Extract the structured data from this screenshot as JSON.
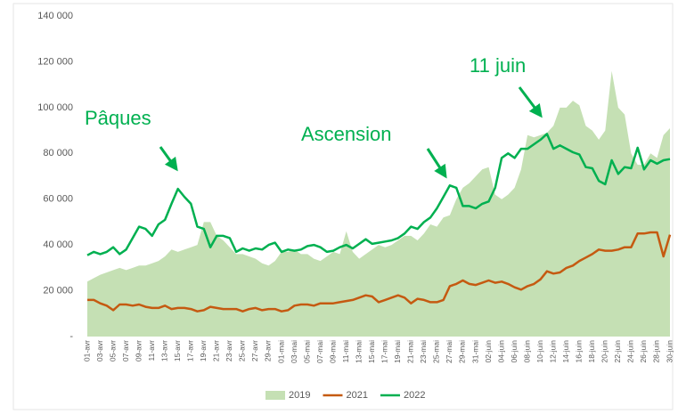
{
  "chart_data": {
    "type": "line",
    "categories": [
      "01-avr",
      null,
      "03-avr",
      null,
      "05-avr",
      null,
      "07-avr",
      null,
      "09-avr",
      null,
      "11-avr",
      null,
      "13-avr",
      null,
      "15-avr",
      null,
      "17-avr",
      null,
      "19-avr",
      null,
      "21-avr",
      null,
      "23-avr",
      null,
      "25-avr",
      null,
      "27-avr",
      null,
      "29-avr",
      null,
      "01-mai",
      null,
      "03-mai",
      null,
      "05-mai",
      null,
      "07-mai",
      null,
      "09-mai",
      null,
      "11-mai",
      null,
      "13-mai",
      null,
      "15-mai",
      null,
      "17-mai",
      null,
      "19-mai",
      null,
      "21-mai",
      null,
      "23-mai",
      null,
      "25-mai",
      null,
      "27-mai",
      null,
      "29-mai",
      null,
      "31-mai",
      null,
      "02-juin",
      null,
      "04-juin",
      null,
      "06-juin",
      null,
      "08-juin",
      null,
      "10-juin",
      null,
      "12-juin",
      null,
      "14-juin",
      null,
      "16-juin",
      null,
      "18-juin",
      null,
      "20-juin",
      null,
      "22-juin",
      null,
      "24-juin",
      null,
      "26-juin",
      null,
      "28-juin",
      null,
      "30-juin"
    ],
    "series": [
      {
        "name": "2019",
        "kind": "area",
        "color": "#c5e0b4",
        "values": [
          24000,
          25500,
          27000,
          28000,
          29000,
          30000,
          29000,
          30000,
          31000,
          31000,
          32000,
          33000,
          35000,
          38000,
          37000,
          38000,
          39000,
          40000,
          50000,
          50000,
          44000,
          42000,
          39000,
          36000,
          36000,
          35000,
          34000,
          32000,
          31000,
          33000,
          37000,
          37000,
          38000,
          36000,
          36000,
          34000,
          33000,
          35000,
          37000,
          36000,
          46000,
          37000,
          34000,
          36000,
          38000,
          40000,
          39000,
          40000,
          42000,
          44000,
          44000,
          42000,
          45000,
          49000,
          48000,
          52000,
          53000,
          60000,
          65000,
          67000,
          70000,
          73000,
          74000,
          62000,
          60000,
          62000,
          65000,
          73000,
          88000,
          87000,
          88000,
          89000,
          92000,
          100000,
          100000,
          103000,
          101000,
          92000,
          90000,
          86000,
          90000,
          116000,
          100000,
          97000,
          80000,
          75000,
          75000,
          80000,
          78000,
          88000,
          91000
        ]
      },
      {
        "name": "2021",
        "kind": "line",
        "color": "#c55a11",
        "values": [
          16000,
          16000,
          14500,
          13500,
          11500,
          14000,
          14000,
          13500,
          14000,
          13000,
          12500,
          12500,
          13500,
          12000,
          12500,
          12500,
          12000,
          11000,
          11500,
          13000,
          12500,
          12000,
          12000,
          12000,
          11000,
          12000,
          12500,
          11500,
          12000,
          12000,
          11000,
          11500,
          13500,
          14000,
          14000,
          13500,
          14500,
          14500,
          14500,
          15000,
          15500,
          16000,
          17000,
          18000,
          17500,
          15000,
          16000,
          17000,
          18000,
          17000,
          14500,
          16500,
          16000,
          15000,
          15000,
          16000,
          22000,
          23000,
          24500,
          23000,
          22500,
          23500,
          24500,
          23500,
          24000,
          23000,
          21500,
          20500,
          22000,
          23000,
          25000,
          28500,
          27500,
          28000,
          30000,
          31000,
          33000,
          34500,
          36000,
          38000,
          37500,
          37500,
          38000,
          39000,
          39000,
          45000,
          45000,
          45500,
          45500,
          35000,
          44500
        ]
      },
      {
        "name": "2022",
        "kind": "line",
        "color": "#00b050",
        "values": [
          35500,
          37000,
          36000,
          37000,
          39000,
          36000,
          38000,
          43000,
          48000,
          47000,
          44000,
          49000,
          51000,
          58000,
          64500,
          61000,
          58000,
          48000,
          47000,
          39000,
          44000,
          44000,
          43000,
          37000,
          38500,
          37500,
          38500,
          38000,
          40000,
          41000,
          37000,
          38000,
          37500,
          38000,
          39500,
          40000,
          39000,
          37000,
          37500,
          39000,
          40000,
          38500,
          40500,
          42500,
          40500,
          41000,
          41500,
          42000,
          43000,
          45000,
          48000,
          47000,
          50000,
          52000,
          56000,
          61000,
          66000,
          65000,
          57000,
          57000,
          56000,
          58000,
          59000,
          65000,
          78000,
          80000,
          78000,
          82000,
          82000,
          84000,
          86000,
          88500,
          82000,
          83500,
          82000,
          80500,
          79500,
          74000,
          73500,
          68000,
          66500,
          77000,
          71000,
          74000,
          73500,
          82500,
          73000,
          77000,
          75500,
          77000,
          77500
        ]
      }
    ],
    "ylim": [
      0,
      140000
    ],
    "yticks": [
      {
        "value": 0,
        "label": "-"
      },
      {
        "value": 20000,
        "label": "20 000"
      },
      {
        "value": 40000,
        "label": "40 000"
      },
      {
        "value": 60000,
        "label": "60 000"
      },
      {
        "value": 80000,
        "label": "80 000"
      },
      {
        "value": 100000,
        "label": "100 000"
      },
      {
        "value": 120000,
        "label": "120 000"
      },
      {
        "value": 140000,
        "label": "140 000"
      }
    ],
    "annotations": [
      "Pâques",
      "Ascension",
      "11 juin"
    ],
    "annotation_color": "#00b050",
    "legend": "bottom"
  }
}
